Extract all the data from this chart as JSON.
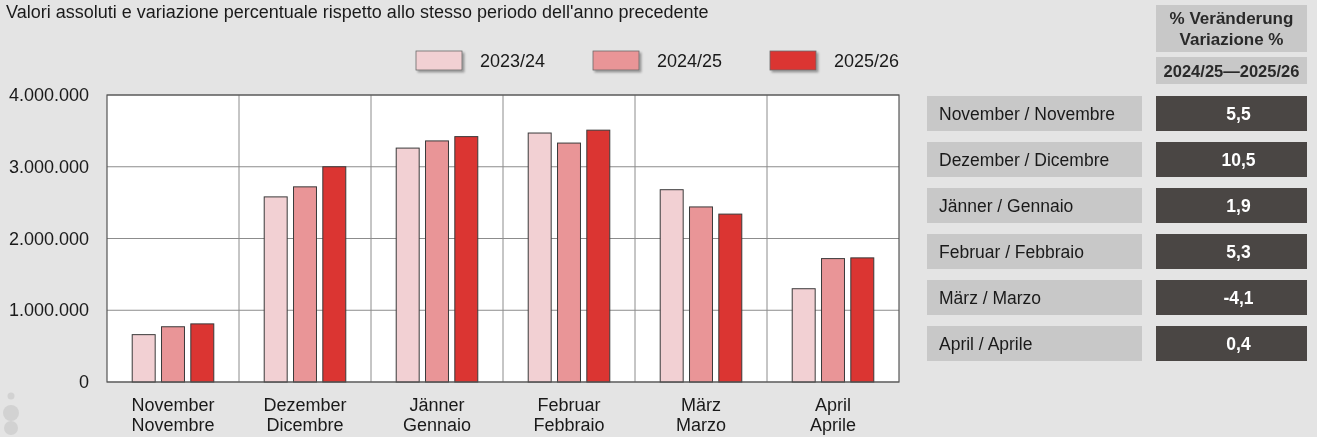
{
  "chart_data": [
    {
      "type": "bar",
      "title": "Valori assoluti e variazione percentuale rispetto allo stesso periodo dell'anno precedente",
      "categories": [
        "November\nNovembre",
        "Dezember\nDicembre",
        "Jänner\nGennaio",
        "Februar\nFebbraio",
        "März\nMarzo",
        "April\nAprile"
      ],
      "series": [
        {
          "name": "2023/24",
          "color": "#f2d0d3",
          "values": [
            660000,
            2580000,
            3260000,
            3470000,
            2680000,
            1300000
          ]
        },
        {
          "name": "2024/25",
          "color": "#e99597",
          "values": [
            770000,
            2720000,
            3360000,
            3330000,
            2440000,
            1720000
          ]
        },
        {
          "name": "2025/26",
          "color": "#db3532",
          "values": [
            810000,
            3000000,
            3420000,
            3510000,
            2340000,
            1730000
          ]
        }
      ],
      "ylim": [
        0,
        4000000
      ],
      "yticks": [
        {
          "value": 0,
          "label": "0"
        },
        {
          "value": 1000000,
          "label": "1.000.000"
        },
        {
          "value": 2000000,
          "label": "2.000.000"
        },
        {
          "value": 3000000,
          "label": "3.000.000"
        },
        {
          "value": 4000000,
          "label": "4.000.000"
        }
      ],
      "grid": true,
      "legend": "top"
    },
    {
      "type": "other",
      "title": "% Veränderung\nVariazione %",
      "subtitle": "2024/25—2025/26",
      "categories": [
        "November / Novembre",
        "Dezember / Dicembre",
        "Jänner / Gennaio",
        "Februar / Febbraio",
        "März / Marzo",
        "April / Aprile"
      ],
      "value_labels": [
        "5,5",
        "10,5",
        "1,9",
        "5,3",
        "-4,1",
        "0,4"
      ]
    }
  ]
}
